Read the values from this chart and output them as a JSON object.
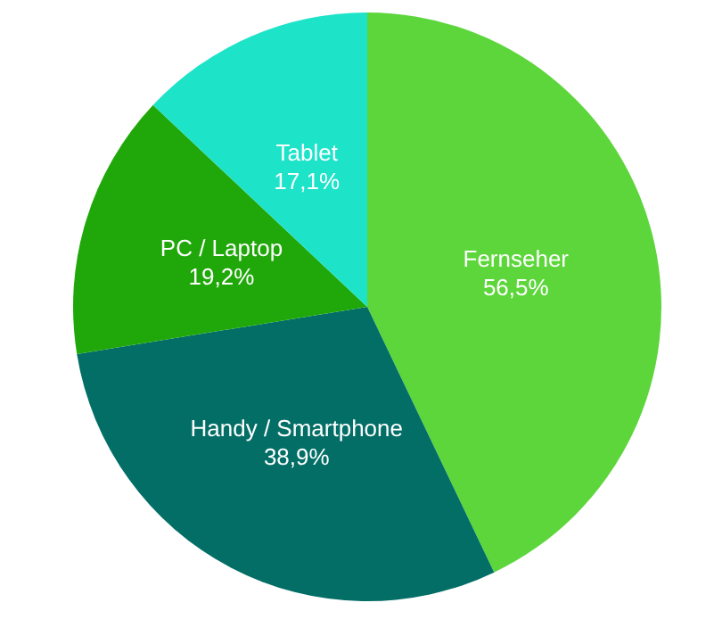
{
  "chart_data": {
    "type": "pie",
    "categories": [
      "Fernseher",
      "Handy / Smartphone",
      "PC / Laptop",
      "Tablet"
    ],
    "values": [
      56.5,
      38.9,
      19.2,
      17.1
    ],
    "value_labels": [
      "56,5%",
      "38,9%",
      "19,2%",
      "17,1%"
    ],
    "colors": [
      "#5cd63a",
      "#026e66",
      "#20a80a",
      "#1de3c9"
    ],
    "legend": false
  }
}
